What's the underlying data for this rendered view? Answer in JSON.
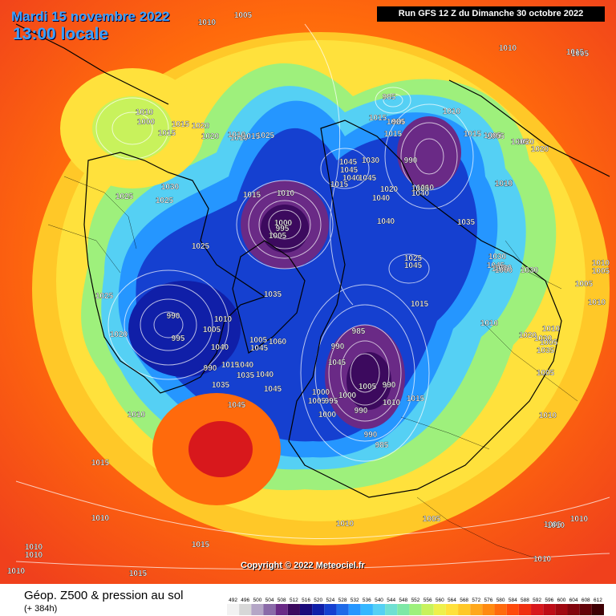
{
  "header": {
    "date": "Mardi 15 novembre 2022",
    "time": "13:00 locale",
    "run": "Run GFS 12 Z du Dimanche 30 octobre 2022"
  },
  "copyright": "Copyright © 2022 Meteociel.fr",
  "footer": {
    "title": "Géop. Z500 & pression au sol",
    "subtitle": "(+ 384h)"
  },
  "legend": {
    "values": [
      "492",
      "496",
      "500",
      "504",
      "508",
      "512",
      "516",
      "520",
      "524",
      "528",
      "532",
      "536",
      "540",
      "544",
      "548",
      "552",
      "556",
      "560",
      "564",
      "568",
      "572",
      "576",
      "580",
      "584",
      "588",
      "592",
      "596",
      "600",
      "604",
      "608",
      "612"
    ],
    "colors": [
      "#f2f2f2",
      "#d7d7d7",
      "#b4a6c6",
      "#8a6aa8",
      "#6a2a86",
      "#3c0a5e",
      "#1a0a7a",
      "#101fa8",
      "#1540d0",
      "#1e6ae8",
      "#2596ff",
      "#35b7ff",
      "#55d0f4",
      "#6fe0d2",
      "#7ee8a6",
      "#9ef07c",
      "#c8f25c",
      "#eef04c",
      "#ffe13c",
      "#ffc828",
      "#ffa81c",
      "#ff8a10",
      "#ff6a0c",
      "#ff4a0a",
      "#f03010",
      "#d8181c",
      "#be0c16",
      "#a00810",
      "#82040c",
      "#620208",
      "#3e0004"
    ]
  },
  "pressure_labels": [
    "1010",
    "1005",
    "1010",
    "1005",
    "1000",
    "1010",
    "1015",
    "1020",
    "1015",
    "1020",
    "1010",
    "1025",
    "1030",
    "1025",
    "1010",
    "1015",
    "1000",
    "995",
    "1005",
    "1010",
    "1025",
    "1015",
    "1025",
    "1025",
    "990",
    "995",
    "1010",
    "1005",
    "1020",
    "1035",
    "1005",
    "1060",
    "1040",
    "1040",
    "1045",
    "1035",
    "1045",
    "1015",
    "1045",
    "1020",
    "1015",
    "1010",
    "1015",
    "1000",
    "1005",
    "995",
    "1000",
    "990",
    "985",
    "1000",
    "990",
    "990",
    "985",
    "990",
    "1010",
    "1015",
    "1010",
    "1015",
    "1010",
    "1010",
    "1010",
    "1015",
    "1010",
    "1005",
    "1005",
    "985",
    "990",
    "1010",
    "1015",
    "1015",
    "1045",
    "1045",
    "1040",
    "1030",
    "1040",
    "1020",
    "1025",
    "1045",
    "1045",
    "1040",
    "1035",
    "1025",
    "1020",
    "1020",
    "1015",
    "1010",
    "1010",
    "1005",
    "1035",
    "1030",
    "1045",
    "1035",
    "1030",
    "1010",
    "1005",
    "1010",
    "1005",
    "1010",
    "1010",
    "1010",
    "1010",
    "1005",
    "1005",
    "1010",
    "1015",
    "1015",
    "1010",
    "1005",
    "1005",
    "1010",
    "1015",
    "985",
    "1040",
    "1010",
    "1000",
    "1030",
    "1020",
    "1035",
    "1040",
    "1045",
    "1005",
    "990",
    "1010"
  ]
}
